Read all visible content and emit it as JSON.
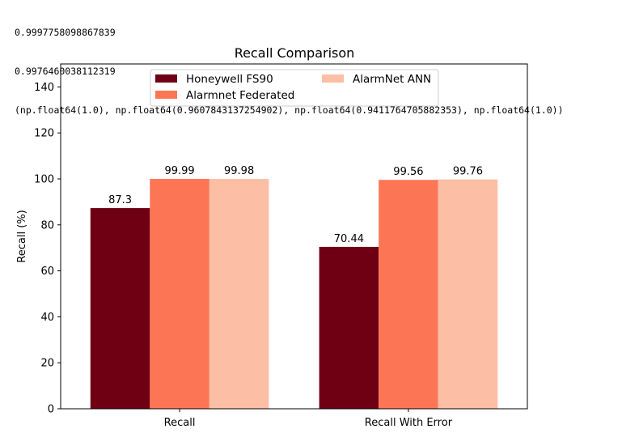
{
  "console_output": [
    "0.9997758098867839",
    "0.9976460038112319",
    "(np.float64(1.0), np.float64(0.9607843137254902), np.float64(0.9411764705882353), np.float64(1.0))"
  ],
  "chart_data": {
    "type": "bar",
    "title": "Recall Comparison",
    "xlabel": "",
    "ylabel": "Recall (%)",
    "ylim": [
      0,
      150
    ],
    "yticks": [
      0,
      20,
      40,
      60,
      80,
      100,
      120,
      140
    ],
    "categories": [
      "Recall",
      "Recall With Error"
    ],
    "series": [
      {
        "name": "Honeywell FS90",
        "values": [
          87.3,
          70.44
        ],
        "labels": [
          "87.3",
          "70.44"
        ],
        "color": "#6f0014"
      },
      {
        "name": "Alarmnet Federated",
        "values": [
          99.99,
          99.56
        ],
        "labels": [
          "99.99",
          "99.56"
        ],
        "color": "#fc7656"
      },
      {
        "name": "AlarmNet ANN",
        "values": [
          99.98,
          99.76
        ],
        "labels": [
          "99.98",
          "99.76"
        ],
        "color": "#fcbea5"
      }
    ],
    "legend": {
      "placement": "upper-center",
      "columns": 2
    },
    "grid": false
  }
}
